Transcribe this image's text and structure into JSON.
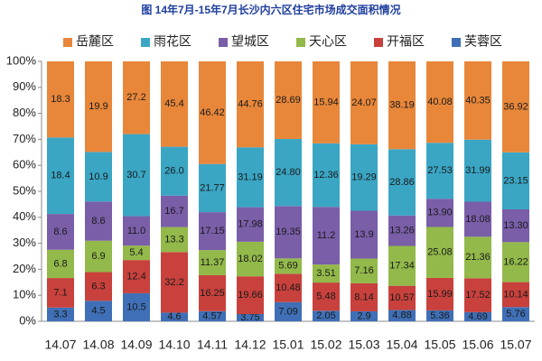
{
  "chart_data": {
    "type": "percent_stacked_bar",
    "title": "图 14年7月-15年7月长沙内六区住宅市场成交面积情况",
    "categories": [
      "14.07",
      "14.08",
      "14.09",
      "14.10",
      "14.11",
      "14.12",
      "15.01",
      "15.02",
      "15.03",
      "15.04",
      "15.05",
      "15.06",
      "15.07"
    ],
    "series": [
      {
        "name": "芙蓉区",
        "color": "#3f6fb6",
        "values": [
          3.3,
          4.5,
          10.5,
          4.6,
          4.57,
          3.75,
          7.09,
          2.05,
          2.9,
          4.88,
          5.36,
          4.69,
          5.76
        ],
        "value_labels": [
          "3.3",
          "4.5",
          "10.5",
          "4.6",
          "4.57",
          "3.75",
          "7.09",
          "2.05",
          "2.9",
          "4.88",
          "5.36",
          "4.69",
          "5.76"
        ]
      },
      {
        "name": "开福区",
        "color": "#c8413c",
        "values": [
          7.1,
          6.3,
          12.4,
          32.2,
          16.25,
          19.66,
          10.48,
          5.48,
          8.14,
          10.57,
          15.99,
          17.52,
          10.14
        ],
        "value_labels": [
          "7.1",
          "6.3",
          "12.4",
          "32.2",
          "16.25",
          "19.66",
          "10.48",
          "5.48",
          "8.14",
          "10.57",
          "15.99",
          "17.52",
          "10.14"
        ]
      },
      {
        "name": "天心区",
        "color": "#92b94a",
        "values": [
          6.8,
          6.9,
          5.4,
          13.3,
          11.37,
          18.02,
          5.69,
          3.51,
          7.16,
          17.34,
          25.08,
          21.36,
          16.22
        ],
        "value_labels": [
          "6.8",
          "6.9",
          "5.4",
          "13.3",
          "11.37",
          "18.02",
          "5.69",
          "3.51",
          "7.16",
          "17.34",
          "25.08",
          "21.36",
          "16.22"
        ]
      },
      {
        "name": "望城区",
        "color": "#7a5ea8",
        "values": [
          8.6,
          8.6,
          11.0,
          16.7,
          17.15,
          17.98,
          19.35,
          11.2,
          13.9,
          13.26,
          13.9,
          18.08,
          13.3
        ],
        "value_labels": [
          "8.6",
          "8.6",
          "11.0",
          "16.7",
          "17.15",
          "17.98",
          "19.35",
          "11.2",
          "13.9",
          "13.26",
          "13.90",
          "18.08",
          "13.30"
        ]
      },
      {
        "name": "雨花区",
        "color": "#3aa6c4",
        "values": [
          18.4,
          10.9,
          30.7,
          26.0,
          21.77,
          31.19,
          24.8,
          12.36,
          19.29,
          28.86,
          27.53,
          31.99,
          23.15
        ],
        "value_labels": [
          "18.4",
          "10.9",
          "30.7",
          "26.0",
          "21.77",
          "31.19",
          "24.80",
          "12.36",
          "19.29",
          "28.86",
          "27.53",
          "31.99",
          "23.15"
        ]
      },
      {
        "name": "岳麓区",
        "color": "#e8873a",
        "values": [
          18.3,
          19.9,
          27.2,
          45.4,
          46.42,
          44.76,
          28.69,
          15.94,
          24.07,
          38.19,
          40.08,
          40.35,
          36.92
        ],
        "value_labels": [
          "18.3",
          "19.9",
          "27.2",
          "45.4",
          "46.42",
          "44.76",
          "28.69",
          "15.94",
          "24.07",
          "38.19",
          "40.08",
          "40.35",
          "36.92"
        ]
      }
    ],
    "ylim": [
      0,
      100
    ],
    "yticks": [
      {
        "value": 0,
        "label": "0%"
      },
      {
        "value": 10,
        "label": "10%"
      },
      {
        "value": 20,
        "label": "20%"
      },
      {
        "value": 30,
        "label": "30%"
      },
      {
        "value": 40,
        "label": "40%"
      },
      {
        "value": 50,
        "label": "50%"
      },
      {
        "value": 60,
        "label": "60%"
      },
      {
        "value": 70,
        "label": "70%"
      },
      {
        "value": 80,
        "label": "80%"
      },
      {
        "value": 90,
        "label": "90%"
      },
      {
        "value": 100,
        "label": "100%"
      }
    ]
  }
}
